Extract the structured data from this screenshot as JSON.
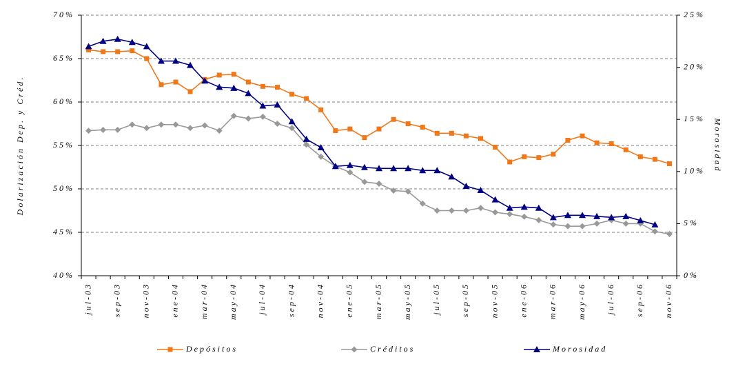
{
  "chart_data": {
    "type": "line",
    "ylabel": "Dolarización Dep. y Créd.",
    "y2label": "Morosidad",
    "categories": [
      "jul-03",
      null,
      "sep-03",
      null,
      "nov-03",
      null,
      "ene-04",
      null,
      "mar-04",
      null,
      "may-04",
      null,
      "jul-04",
      null,
      "sep-04",
      null,
      "nov-04",
      null,
      "ene-05",
      null,
      "mar-05",
      null,
      "may-05",
      null,
      "jul-05",
      null,
      "sep-05",
      null,
      "nov-05",
      null,
      "ene-06",
      null,
      "mar-06",
      null,
      "may-06",
      null,
      "jul-06",
      null,
      "sep-06",
      null,
      "nov-06"
    ],
    "ylim": [
      40,
      70
    ],
    "yticks": [
      {
        "value": 40,
        "label": "40%"
      },
      {
        "value": 45,
        "label": "45%"
      },
      {
        "value": 50,
        "label": "50%"
      },
      {
        "value": 55,
        "label": "55%"
      },
      {
        "value": 60,
        "label": "60%"
      },
      {
        "value": 65,
        "label": "65%"
      },
      {
        "value": 70,
        "label": "70%"
      }
    ],
    "y2lim": [
      0,
      25
    ],
    "y2ticks": [
      {
        "value": 0,
        "label": "0%"
      },
      {
        "value": 5,
        "label": "5%"
      },
      {
        "value": 10,
        "label": "10%"
      },
      {
        "value": 15,
        "label": "15%"
      },
      {
        "value": 20,
        "label": "20%"
      },
      {
        "value": 25,
        "label": "25%"
      }
    ],
    "grid": true,
    "legend": "bottom",
    "series": [
      {
        "name": "Depósitos",
        "color": "#f07818",
        "marker": "square",
        "values": [
          66.0,
          65.8,
          65.8,
          65.9,
          65.0,
          62.0,
          62.3,
          61.2,
          62.6,
          63.1,
          63.2,
          62.3,
          61.8,
          61.7,
          60.9,
          60.4,
          59.1,
          56.7,
          56.9,
          55.9,
          56.9,
          58.0,
          57.5,
          57.1,
          56.4,
          56.4,
          56.1,
          55.8,
          54.8,
          53.1,
          53.7,
          53.6,
          54.0,
          55.6,
          56.1,
          55.3,
          55.2,
          54.5,
          53.7,
          53.4,
          52.9
        ]
      },
      {
        "name": "Créditos",
        "color": "#999999",
        "marker": "diamond",
        "values": [
          56.7,
          56.8,
          56.8,
          57.4,
          57.0,
          57.4,
          57.4,
          57.0,
          57.3,
          56.7,
          58.4,
          58.1,
          58.3,
          57.5,
          57.0,
          55.1,
          53.7,
          52.6,
          51.9,
          50.8,
          50.6,
          49.8,
          49.7,
          48.3,
          47.5,
          47.5,
          47.5,
          47.8,
          47.3,
          47.1,
          46.8,
          46.4,
          45.9,
          45.7,
          45.7,
          46.0,
          46.4,
          46.0,
          46.0,
          45.1,
          44.8
        ]
      },
      {
        "name": "Morosidad",
        "color": "#000080",
        "marker": "triangle",
        "axis": "y2",
        "values": [
          22.0,
          22.5,
          22.7,
          22.4,
          22.0,
          20.6,
          20.6,
          20.2,
          18.7,
          18.1,
          18.0,
          17.5,
          16.3,
          16.4,
          14.8,
          13.1,
          12.3,
          10.5,
          10.6,
          10.4,
          10.3,
          10.3,
          10.3,
          10.1,
          10.1,
          9.5,
          8.6,
          8.2,
          7.3,
          6.5,
          6.6,
          6.5,
          5.6,
          5.8,
          5.8,
          5.7,
          5.6,
          5.7,
          5.3,
          4.9,
          null
        ]
      }
    ]
  }
}
